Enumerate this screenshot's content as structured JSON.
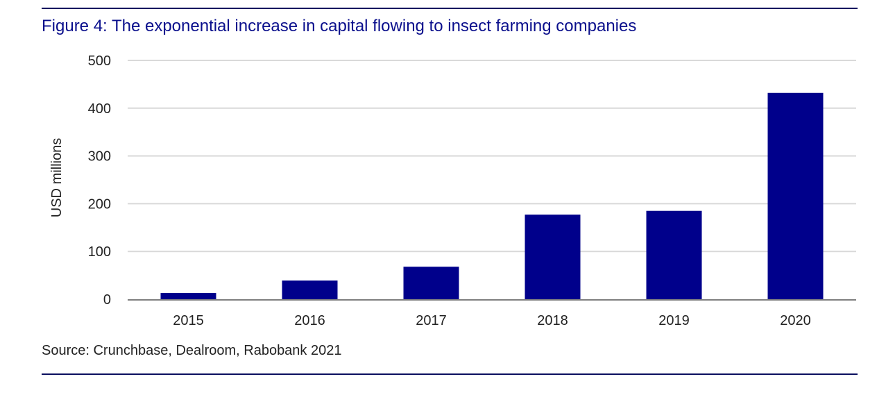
{
  "colors": {
    "accent": "#0a0f8c",
    "bar": "#00008b",
    "grid": "#d9d9d9",
    "axis": "#7f7f7f",
    "rule": "#0a0f5e"
  },
  "figure": {
    "title": "Figure 4: The exponential increase in capital flowing to insect farming companies",
    "source": "Source: Crunchbase, Dealroom, Rabobank 2021"
  },
  "chart_data": {
    "type": "bar",
    "title": "Figure 4: The exponential increase in capital flowing to insect farming companies",
    "xlabel": "",
    "ylabel": "USD millions",
    "categories": [
      "2015",
      "2016",
      "2017",
      "2018",
      "2019",
      "2020"
    ],
    "values": [
      13,
      39,
      68,
      177,
      185,
      432
    ],
    "ylim": [
      0,
      500
    ],
    "yticks": [
      0,
      100,
      200,
      300,
      400,
      500
    ],
    "grid": true,
    "legend": "none"
  }
}
